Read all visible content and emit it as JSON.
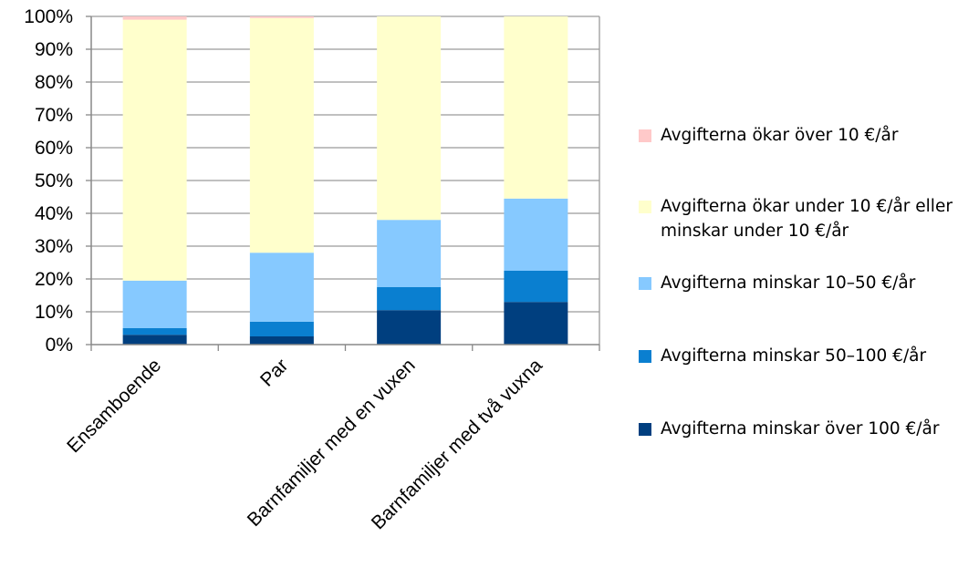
{
  "chart_data": {
    "type": "bar",
    "stacked": true,
    "percent_axis": true,
    "categories": [
      "Ensamboende",
      "Par",
      "Barnfamiljer med en vuxen",
      "Barnfamiljer med två vuxna"
    ],
    "series": [
      {
        "name": "Avgifterna minskar över 100 €/år",
        "color": "#003F7F",
        "values": [
          3,
          2.5,
          10.5,
          13
        ]
      },
      {
        "name": "Avgifterna minskar 50–100 €/år",
        "color": "#0A7FD0",
        "values": [
          2,
          4.5,
          7,
          9.5
        ]
      },
      {
        "name": "Avgifterna minskar 10–50 €/år",
        "color": "#86C9FF",
        "values": [
          14.5,
          21,
          20.5,
          22
        ]
      },
      {
        "name": "Avgifterna ökar under 10 €/år eller minskar under 10 €/år",
        "color": "#FFFFCC",
        "values": [
          79.5,
          71.5,
          62,
          55.5
        ]
      },
      {
        "name": "Avgifterna ökar över 10 €/år",
        "color": "#FFC9C9",
        "values": [
          1,
          0.5,
          0,
          0
        ]
      }
    ],
    "ylim": [
      0,
      100
    ],
    "yticks": [
      "0%",
      "10%",
      "20%",
      "30%",
      "40%",
      "50%",
      "60%",
      "70%",
      "80%",
      "90%",
      "100%"
    ],
    "grid": true,
    "legend_position": "right",
    "title": "",
    "xlabel": "",
    "ylabel": ""
  }
}
